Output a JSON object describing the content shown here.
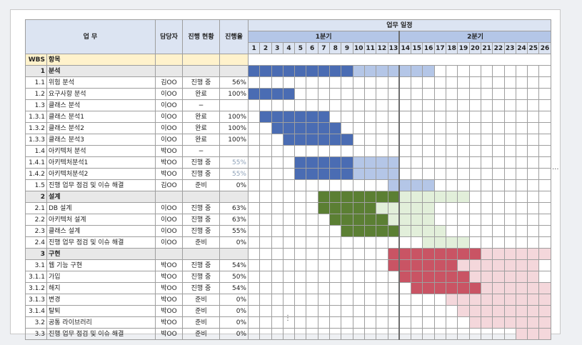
{
  "header": {
    "task": "업 무",
    "owner": "담당자",
    "status": "진행 현황",
    "progress": "진행율",
    "schedule": "업무 일정",
    "quarter1": "1분기",
    "quarter2": "2분기"
  },
  "days": [
    "1",
    "2",
    "3",
    "4",
    "5",
    "6",
    "7",
    "8",
    "9",
    "10",
    "11",
    "12",
    "13",
    "14",
    "15",
    "16",
    "17",
    "18",
    "19",
    "20",
    "21",
    "22",
    "23",
    "24",
    "25",
    "26"
  ],
  "wbs_header": {
    "wbs": "WBS",
    "item": "항목"
  },
  "colors": {
    "blue": "#4a6cb3",
    "blue_light": "#b4c6e7",
    "green": "#5b7f33",
    "green_light": "#e2efda",
    "red": "#c95464",
    "red_light": "#f4d7db"
  },
  "rows": [
    {
      "type": "section",
      "wbs": "1",
      "name": "분석",
      "owner": "",
      "status": "",
      "progress": "",
      "bars": [
        {
          "s": 1,
          "e": 9,
          "c": "blue"
        },
        {
          "s": 10,
          "e": 16,
          "c": "blue_light"
        }
      ]
    },
    {
      "type": "task",
      "wbs": "1.1",
      "name": "위험 분석",
      "owner": "김OO",
      "status": "진행 중",
      "progress": "56%",
      "bars": []
    },
    {
      "type": "task",
      "wbs": "1.2",
      "name": "요구사항 분석",
      "owner": "이OO",
      "status": "완료",
      "progress": "100%",
      "bars": [
        {
          "s": 1,
          "e": 4,
          "c": "blue"
        }
      ]
    },
    {
      "type": "task",
      "wbs": "1.3",
      "name": "클래스 분석",
      "owner": "이OO",
      "status": "−",
      "progress": "",
      "bars": []
    },
    {
      "type": "task",
      "wbs": "1.3.1",
      "name": "클래스 분석1",
      "owner": "이OO",
      "status": "완료",
      "progress": "100%",
      "bars": [
        {
          "s": 2,
          "e": 7,
          "c": "blue"
        }
      ]
    },
    {
      "type": "task",
      "wbs": "1.3.2",
      "name": "클래스 분석2",
      "owner": "이OO",
      "status": "완료",
      "progress": "100%",
      "bars": [
        {
          "s": 3,
          "e": 8,
          "c": "blue"
        }
      ]
    },
    {
      "type": "task",
      "wbs": "1.3.3",
      "name": "클래스 분석3",
      "owner": "이OO",
      "status": "완료",
      "progress": "100%",
      "bars": [
        {
          "s": 4,
          "e": 9,
          "c": "blue"
        }
      ]
    },
    {
      "type": "task",
      "wbs": "1.4",
      "name": "아키텍처 분석",
      "owner": "박OO",
      "status": "−",
      "progress": "",
      "bars": []
    },
    {
      "type": "task",
      "wbs": "1.4.1",
      "name": "아키텍처분석1",
      "owner": "박OO",
      "status": "진행 중",
      "progress": "55%",
      "light": true,
      "bars": [
        {
          "s": 5,
          "e": 9,
          "c": "blue"
        },
        {
          "s": 10,
          "e": 13,
          "c": "blue_light"
        }
      ]
    },
    {
      "type": "task",
      "wbs": "1.4.2",
      "name": "아키텍처분석2",
      "owner": "박OO",
      "status": "진행 중",
      "progress": "55%",
      "light": true,
      "bars": [
        {
          "s": 5,
          "e": 9,
          "c": "blue"
        },
        {
          "s": 10,
          "e": 13,
          "c": "blue_light"
        }
      ]
    },
    {
      "type": "task",
      "wbs": "1.5",
      "name": "진행 업무 점검 및 이슈 해결",
      "owner": "김OO",
      "status": "준비",
      "progress": "0%",
      "bars": [
        {
          "s": 13,
          "e": 16,
          "c": "blue_light"
        }
      ]
    },
    {
      "type": "section",
      "wbs": "2",
      "name": "설계",
      "owner": "",
      "status": "",
      "progress": "",
      "bars": [
        {
          "s": 7,
          "e": 13,
          "c": "green"
        },
        {
          "s": 14,
          "e": 19,
          "c": "green_light"
        }
      ]
    },
    {
      "type": "task",
      "wbs": "2.1",
      "name": "DB 설계",
      "owner": "이OO",
      "status": "진행 중",
      "progress": "63%",
      "bars": [
        {
          "s": 7,
          "e": 11,
          "c": "green"
        },
        {
          "s": 12,
          "e": 16,
          "c": "green_light"
        }
      ]
    },
    {
      "type": "task",
      "wbs": "2.2",
      "name": "아키텍처 설계",
      "owner": "이OO",
      "status": "진행 중",
      "progress": "63%",
      "bars": [
        {
          "s": 8,
          "e": 12,
          "c": "green"
        },
        {
          "s": 13,
          "e": 16,
          "c": "green_light"
        }
      ]
    },
    {
      "type": "task",
      "wbs": "2.3",
      "name": "클래스 설계",
      "owner": "이OO",
      "status": "진행 중",
      "progress": "55%",
      "bars": [
        {
          "s": 9,
          "e": 13,
          "c": "green"
        },
        {
          "s": 14,
          "e": 17,
          "c": "green_light"
        }
      ]
    },
    {
      "type": "task",
      "wbs": "2.4",
      "name": "진행 업무 점검 및 이슈 해결",
      "owner": "이OO",
      "status": "준비",
      "progress": "0%",
      "bars": [
        {
          "s": 16,
          "e": 19,
          "c": "green_light"
        }
      ]
    },
    {
      "type": "section",
      "wbs": "3",
      "name": "구현",
      "owner": "",
      "status": "",
      "progress": "",
      "bars": [
        {
          "s": 13,
          "e": 20,
          "c": "red"
        },
        {
          "s": 21,
          "e": 26,
          "c": "red_light"
        }
      ]
    },
    {
      "type": "task",
      "wbs": "3.1",
      "name": "웹 기능 구현",
      "owner": "박OO",
      "status": "진행 중",
      "progress": "54%",
      "bars": [
        {
          "s": 13,
          "e": 18,
          "c": "red"
        },
        {
          "s": 19,
          "e": 25,
          "c": "red_light"
        }
      ]
    },
    {
      "type": "task",
      "wbs": "3.1.1",
      "name": "가입",
      "owner": "박OO",
      "status": "진행 중",
      "progress": "50%",
      "bars": [
        {
          "s": 14,
          "e": 19,
          "c": "red"
        },
        {
          "s": 20,
          "e": 25,
          "c": "red_light"
        }
      ]
    },
    {
      "type": "task",
      "wbs": "3.1.2",
      "name": "해지",
      "owner": "박OO",
      "status": "진행 중",
      "progress": "54%",
      "bars": [
        {
          "s": 15,
          "e": 20,
          "c": "red"
        },
        {
          "s": 21,
          "e": 26,
          "c": "red_light"
        }
      ]
    },
    {
      "type": "task",
      "wbs": "3.1.3",
      "name": "변경",
      "owner": "박OO",
      "status": "준비",
      "progress": "0%",
      "bars": [
        {
          "s": 18,
          "e": 26,
          "c": "red_light"
        }
      ]
    },
    {
      "type": "task",
      "wbs": "3.1.4",
      "name": "탈퇴",
      "owner": "박OO",
      "status": "준비",
      "progress": "0%",
      "bars": [
        {
          "s": 19,
          "e": 26,
          "c": "red_light"
        }
      ]
    },
    {
      "type": "task",
      "wbs": "3.2",
      "name": "공통 라이브러리",
      "owner": "박OO",
      "status": "준비",
      "progress": "0%",
      "bars": [
        {
          "s": 20,
          "e": 26,
          "c": "red_light"
        }
      ]
    },
    {
      "type": "task",
      "wbs": "3.3",
      "name": "진행 업무 점검 및 이슈 해결",
      "owner": "박OO",
      "status": "준비",
      "progress": "0%",
      "bars": [
        {
          "s": 24,
          "e": 26,
          "c": "red_light"
        }
      ]
    }
  ],
  "more_right": "...",
  "more_below": "⋮"
}
